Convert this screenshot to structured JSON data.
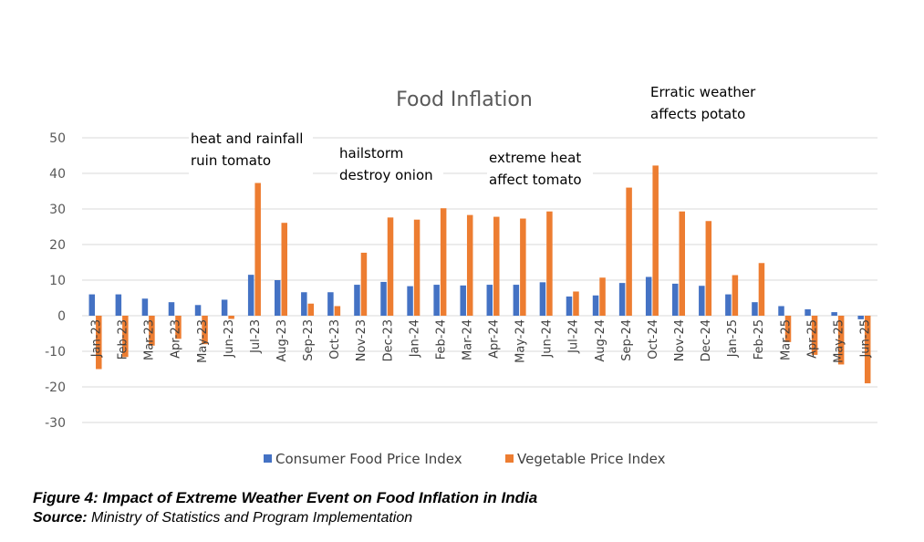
{
  "chart_data": {
    "type": "bar",
    "title": "Food Inflation",
    "xlabel": "",
    "ylabel": "",
    "ylim": [
      -30,
      50
    ],
    "yticks": [
      50,
      40,
      30,
      20,
      10,
      0,
      -10,
      -20,
      -30
    ],
    "grid": true,
    "legend_position": "bottom",
    "categories": [
      "Jan-23",
      "Feb-23",
      "Mar-23",
      "Apr-23",
      "May-23",
      "Jun-23",
      "Jul-23",
      "Aug-23",
      "Sep-23",
      "Oct-23",
      "Nov-23",
      "Dec-23",
      "Jan-24",
      "Feb-24",
      "Mar-24",
      "Apr-24",
      "May-24",
      "Jun-24",
      "Jul-24",
      "Aug-24",
      "Sep-24",
      "Oct-24",
      "Nov-24",
      "Dec-24",
      "Jan-25",
      "Feb-25",
      "Mar-25",
      "Apr-25",
      "May-25",
      "Jun-25"
    ],
    "series": [
      {
        "name": "Consumer Food Price Index",
        "color": "#4472C4",
        "values": [
          6.0,
          6.0,
          4.8,
          3.8,
          3.0,
          4.5,
          11.5,
          10.0,
          6.6,
          6.6,
          8.7,
          9.5,
          8.3,
          8.7,
          8.5,
          8.7,
          8.7,
          9.4,
          5.4,
          5.7,
          9.2,
          10.9,
          9.0,
          8.4,
          6.0,
          3.8,
          2.7,
          1.8,
          1.0,
          -1.0
        ]
      },
      {
        "name": "Vegetable Price Index",
        "color": "#ED7D31",
        "values": [
          -15.0,
          -11.6,
          -8.4,
          -6.5,
          -8.0,
          -0.9,
          37.3,
          26.1,
          3.4,
          2.7,
          17.7,
          27.6,
          27.0,
          30.2,
          28.3,
          27.8,
          27.3,
          29.3,
          6.8,
          10.7,
          36.0,
          42.2,
          29.3,
          26.6,
          11.4,
          14.8,
          -7.4,
          -11.0,
          -13.7,
          -19.0
        ]
      }
    ],
    "annotations": [
      {
        "lines": [
          "heat and rainfall",
          "ruin tomato"
        ]
      },
      {
        "lines": [
          "hailstorm",
          "destroy onion"
        ]
      },
      {
        "lines": [
          "extreme heat",
          "affect tomato"
        ]
      },
      {
        "lines": [
          "Erratic weather",
          "affects potato"
        ]
      }
    ]
  },
  "caption": {
    "figure_title": "Figure 4: Impact of Extreme Weather Event on Food Inflation in India",
    "source_label": "Source:",
    "source_text": " Ministry of Statistics and Program Implementation"
  }
}
